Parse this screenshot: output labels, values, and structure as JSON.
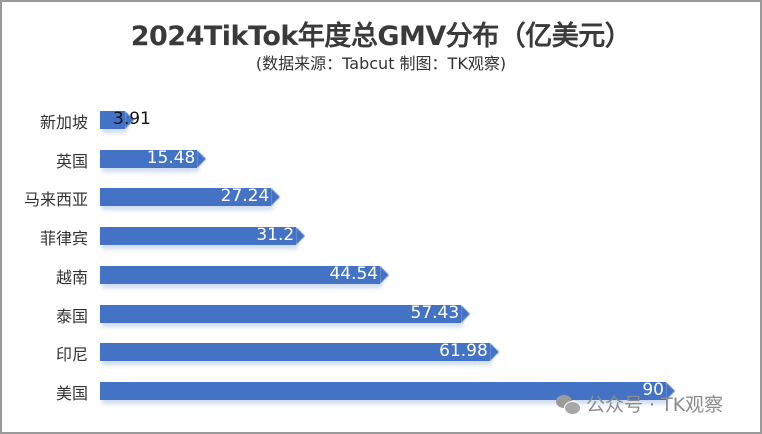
{
  "chart_data": {
    "type": "bar",
    "orientation": "horizontal",
    "title": "2024TikTok年度总GMV分布（亿美元）",
    "subtitle": "(数据来源：Tabcut 制图：TK观察)",
    "categories": [
      "新加坡",
      "英国",
      "马来西亚",
      "菲律宾",
      "越南",
      "泰国",
      "印尼",
      "美国"
    ],
    "values": [
      3.91,
      15.48,
      27.24,
      31.2,
      44.54,
      57.43,
      61.98,
      90
    ],
    "value_labels": [
      "3.91",
      "15.48",
      "27.24",
      "31.2",
      "44.54",
      "57.43",
      "61.98",
      "90"
    ],
    "xlabel": "",
    "ylabel": "",
    "xlim": [
      0,
      90
    ],
    "grid": false,
    "legend": null,
    "bar_color": "#4472c4"
  },
  "watermark": {
    "icon": "wechat-icon",
    "text": "公众号 · TK观察"
  }
}
